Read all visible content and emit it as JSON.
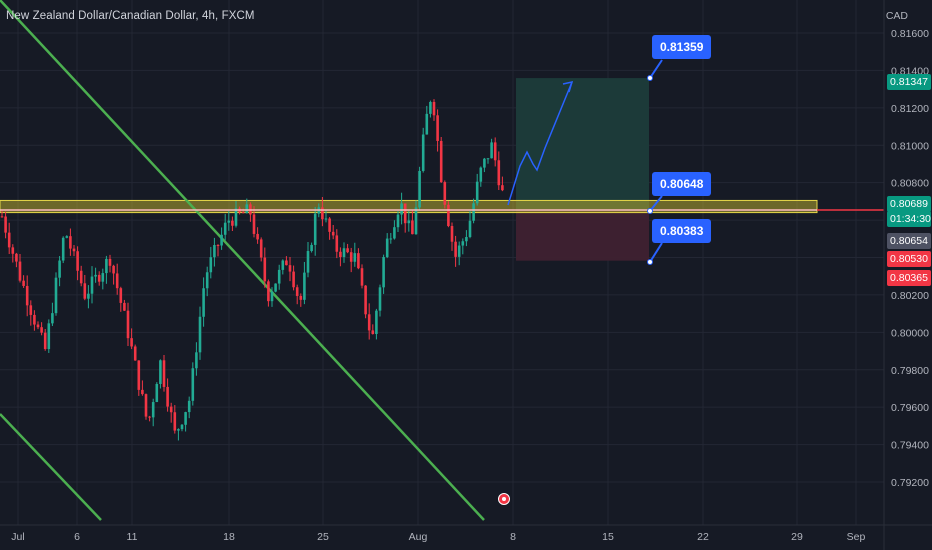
{
  "header": {
    "title": "New Zealand Dollar/Canadian Dollar, 4h, FXCM",
    "currency": "CAD"
  },
  "chart_data": {
    "type": "candlestick",
    "title": "New Zealand Dollar/Canadian Dollar, 4h, FXCM",
    "xlabel": "",
    "ylabel": "CAD",
    "ylim": [
      0.791,
      0.817
    ],
    "y_ticks": [
      "0.81600",
      "0.81400",
      "0.81200",
      "0.81000",
      "0.80800",
      "0.80600",
      "0.80400",
      "0.80200",
      "0.80000",
      "0.79800",
      "0.79600",
      "0.79400",
      "0.79200"
    ],
    "x_ticks": [
      "Jul",
      "6",
      "11",
      "18",
      "25",
      "Aug",
      "8",
      "15",
      "22",
      "29",
      "Sep"
    ],
    "grid": true,
    "colors": {
      "up": "#22ab94",
      "down": "#f23645",
      "background": "#161a25",
      "trendline": "#4caf50",
      "zone": "#b5a72f",
      "long_profit": "#1c3c3a",
      "long_stop": "#3f2130",
      "callout": "#2962ff",
      "projection": "#2962ff"
    },
    "candles_range": {
      "start_price": 0.8062,
      "end_price": 0.80654,
      "high": 0.81347,
      "low": 0.7918
    },
    "zone": {
      "top": 0.80705,
      "bottom": 0.8064
    },
    "horizontal_line": 0.80654,
    "position": {
      "type": "long",
      "target": 0.81359,
      "entry": 0.80648,
      "stop": 0.80383
    },
    "callouts": [
      "0.81359",
      "0.80648",
      "0.80383"
    ],
    "price_tags": [
      {
        "label": "0.81347",
        "color": "#089981"
      },
      {
        "label": "0.80689",
        "color": "#089981"
      },
      {
        "label": "01:34:30",
        "color": "#089981"
      },
      {
        "label": "0.80654",
        "color": "#4e5263"
      },
      {
        "label": "0.80530",
        "color": "#f23645"
      },
      {
        "label": "0.80365",
        "color": "#f23645"
      }
    ]
  }
}
